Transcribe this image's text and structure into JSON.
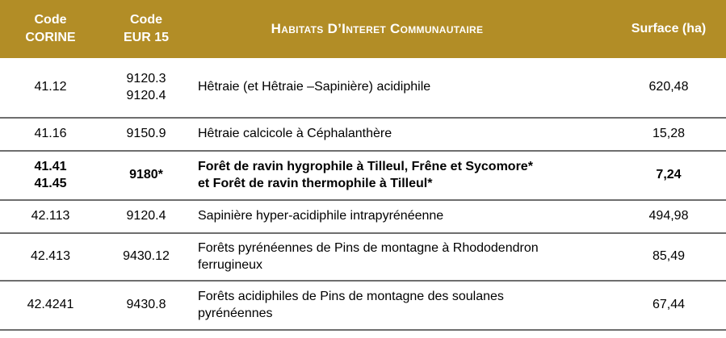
{
  "colors": {
    "header_bg": "#B28D26",
    "header_text": "#FFFFFF",
    "divider": "#6E6E6E",
    "body_text": "#000000",
    "page_bg": "#FFFFFF"
  },
  "table": {
    "header": {
      "code_corine": "Code\nCORINE",
      "code_eur15": "Code\nEUR 15",
      "habitat": "Habitats D’Interet Communautaire",
      "surface": "Surface (ha)"
    },
    "rows": [
      {
        "code_corine": "41.12",
        "code_eur15": "9120.3\n9120.4",
        "habitat": "Hêtraie (et Hêtraie –Sapinière) acidiphile",
        "surface": "620,48",
        "bold": false
      },
      {
        "code_corine": "41.16",
        "code_eur15": "9150.9",
        "habitat": "Hêtraie calcicole à Céphalanthère",
        "surface": "15,28",
        "bold": false
      },
      {
        "code_corine": "41.41\n41.45",
        "code_eur15": "9180*",
        "habitat": "Forêt de ravin hygrophile à Tilleul, Frêne et Sycomore*\net Forêt de ravin thermophile à Tilleul*",
        "surface": "7,24",
        "bold": true
      },
      {
        "code_corine": "42.113",
        "code_eur15": "9120.4",
        "habitat": "Sapinière hyper-acidiphile intrapyrénéenne",
        "surface": "494,98",
        "bold": false
      },
      {
        "code_corine": "42.413",
        "code_eur15": "9430.12",
        "habitat": "Forêts pyrénéennes de Pins de montagne à Rhododendron\nferrugineux",
        "surface": "85,49",
        "bold": false
      },
      {
        "code_corine": "42.4241",
        "code_eur15": "9430.8",
        "habitat": "Forêts acidiphiles de Pins de montagne des soulanes\npyrénéennes",
        "surface": "67,44",
        "bold": false
      }
    ]
  }
}
